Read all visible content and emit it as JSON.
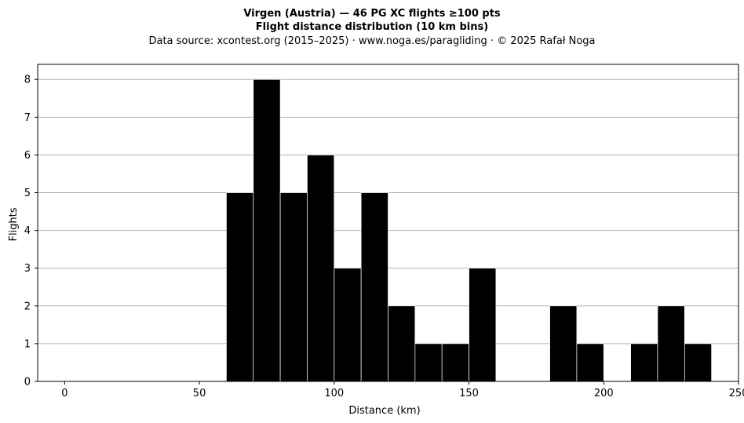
{
  "chart_data": {
    "type": "bar",
    "title_line1": "Virgen (Austria)  —  46 PG XC flights ≥100 pts",
    "title_line2": "Flight distance distribution (10 km bins)",
    "subtitle": "Data source: xcontest.org (2015–2025)  ·  www.noga.es/paragliding  ·  © 2025 Rafał Noga",
    "xlabel": "Distance (km)",
    "ylabel": "Flights",
    "bin_width": 10,
    "xlim": [
      -10,
      250
    ],
    "ylim": [
      0,
      8.4
    ],
    "xticks": [
      0,
      50,
      100,
      150,
      200,
      250
    ],
    "yticks": [
      0,
      1,
      2,
      3,
      4,
      5,
      6,
      7,
      8
    ],
    "grid": "y",
    "bar_color": "#000000",
    "bar_edge_color": "#ffffff",
    "bins": [
      {
        "start": 60,
        "count": 5
      },
      {
        "start": 70,
        "count": 8
      },
      {
        "start": 80,
        "count": 5
      },
      {
        "start": 90,
        "count": 6
      },
      {
        "start": 100,
        "count": 3
      },
      {
        "start": 110,
        "count": 5
      },
      {
        "start": 120,
        "count": 2
      },
      {
        "start": 130,
        "count": 1
      },
      {
        "start": 140,
        "count": 1
      },
      {
        "start": 150,
        "count": 3
      },
      {
        "start": 180,
        "count": 2
      },
      {
        "start": 190,
        "count": 1
      },
      {
        "start": 210,
        "count": 1
      },
      {
        "start": 220,
        "count": 2
      },
      {
        "start": 230,
        "count": 1
      }
    ]
  }
}
